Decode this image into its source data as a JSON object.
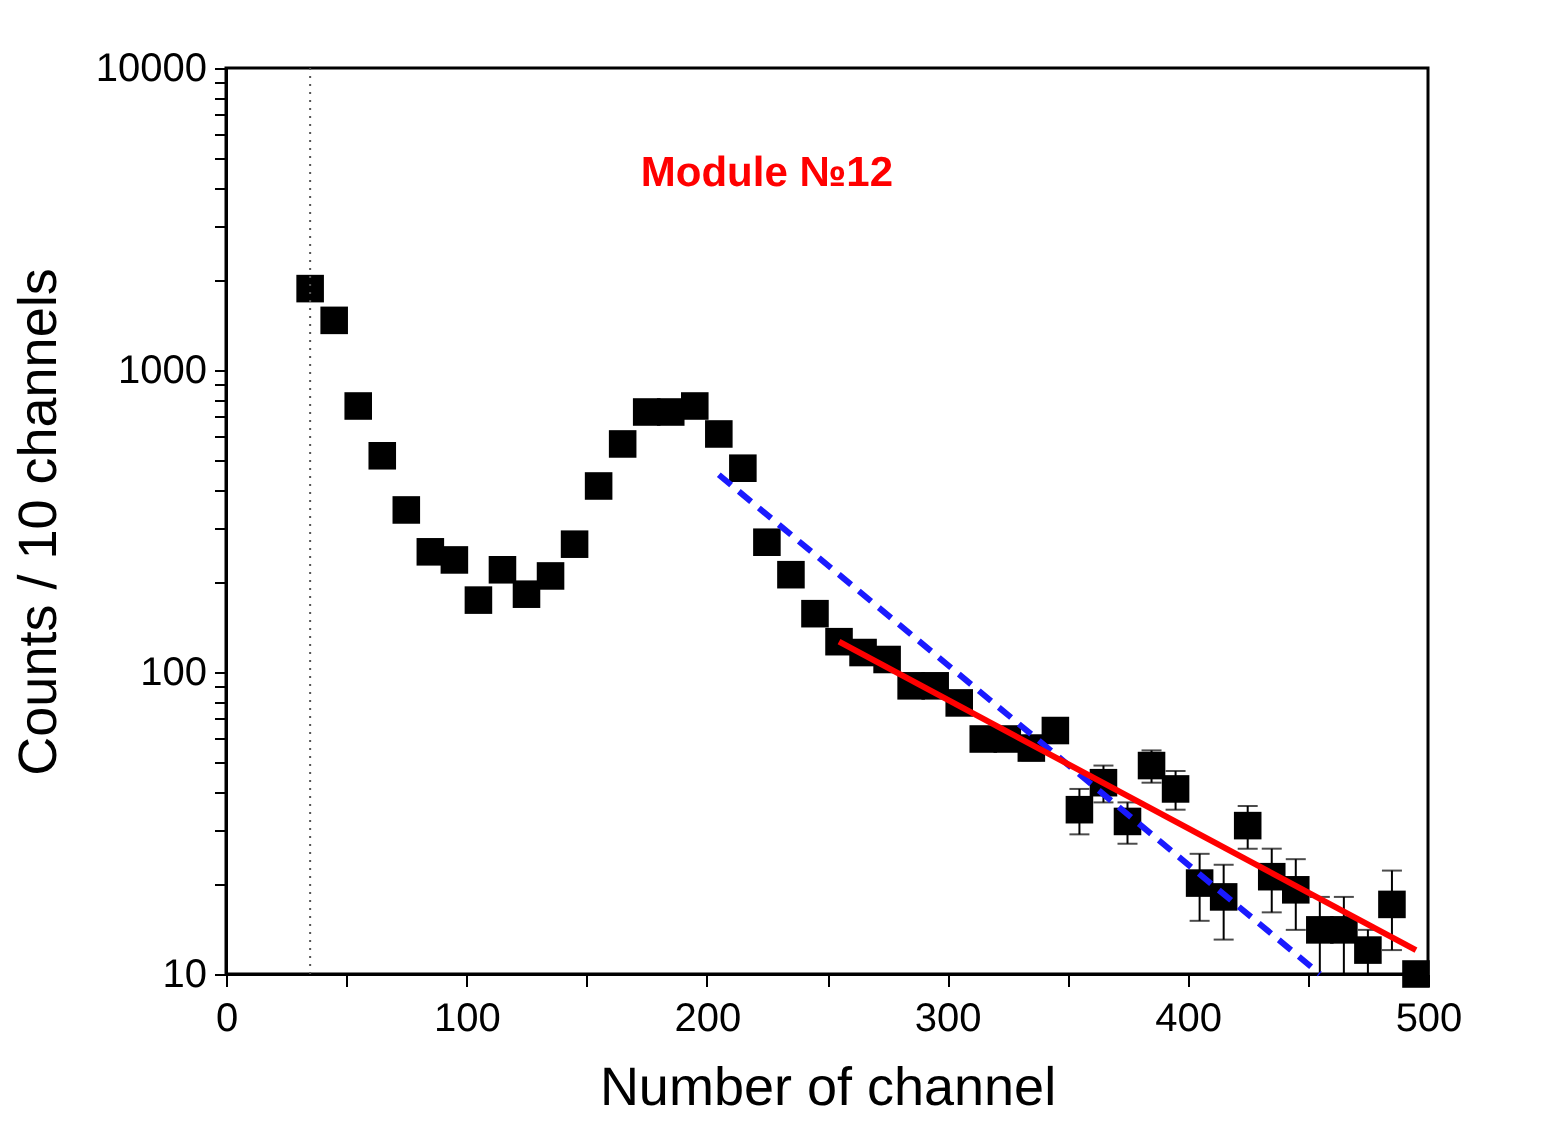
{
  "chart_data": {
    "type": "scatter",
    "xlabel": "Number of channel",
    "ylabel": "Counts / 10 channels",
    "annotations": [
      "Module №12"
    ],
    "xlim": [
      0,
      500
    ],
    "xticks": [
      0,
      {
        "value": 50,
        "label": null
      },
      100,
      {
        "value": 150,
        "label": null
      },
      200,
      {
        "value": 250,
        "label": null
      },
      300,
      {
        "value": 350,
        "label": null
      },
      400,
      {
        "value": 450,
        "label": null
      },
      500
    ],
    "ylim": [
      10,
      10000
    ],
    "yticks": [
      10,
      {
        "value": 20,
        "label": null
      },
      {
        "value": 30,
        "label": null
      },
      {
        "value": 40,
        "label": null
      },
      {
        "value": 50,
        "label": null
      },
      {
        "value": 60,
        "label": null
      },
      {
        "value": 70,
        "label": null
      },
      {
        "value": 80,
        "label": null
      },
      {
        "value": 90,
        "label": null
      },
      100,
      {
        "value": 200,
        "label": null
      },
      {
        "value": 300,
        "label": null
      },
      {
        "value": 400,
        "label": null
      },
      {
        "value": 500,
        "label": null
      },
      {
        "value": 600,
        "label": null
      },
      {
        "value": 700,
        "label": null
      },
      {
        "value": 800,
        "label": null
      },
      {
        "value": 900,
        "label": null
      },
      1000,
      {
        "value": 2000,
        "label": null
      },
      {
        "value": 3000,
        "label": null
      },
      {
        "value": 4000,
        "label": null
      },
      {
        "value": 5000,
        "label": null
      },
      {
        "value": 6000,
        "label": null
      },
      {
        "value": 7000,
        "label": null
      },
      {
        "value": 8000,
        "label": null
      },
      {
        "value": 9000,
        "label": null
      },
      10000
    ],
    "log": "y",
    "grid": false,
    "legend": false,
    "ref_lines": [
      {
        "axis": "x",
        "value": 35,
        "color": "#555555",
        "line_style": "dotted"
      }
    ],
    "series": [
      {
        "marker": "square",
        "color": "#000000",
        "x": [
          35,
          45,
          55,
          65,
          75,
          85,
          95,
          105,
          115,
          125,
          135,
          145,
          155,
          165,
          175,
          185,
          195,
          205,
          215,
          225,
          235,
          245,
          255,
          265,
          275,
          285,
          295,
          305,
          315,
          325,
          335,
          345,
          355,
          365,
          375,
          385,
          395,
          405,
          415,
          425,
          435,
          445,
          455,
          465,
          475,
          485,
          495
        ],
        "values": [
          1860,
          1460,
          760,
          520,
          344,
          250,
          235,
          173,
          218,
          181,
          208,
          265,
          413,
          569,
          726,
          726,
          760,
          614,
          473,
          269,
          210,
          156,
          126,
          116,
          110,
          90,
          90,
          79,
          60,
          60,
          56,
          64,
          35,
          43,
          32,
          49,
          41,
          20,
          18,
          31,
          21,
          19,
          14,
          14,
          12,
          17,
          10
        ],
        "errors": [
          null,
          null,
          null,
          null,
          null,
          null,
          null,
          null,
          null,
          null,
          null,
          null,
          null,
          null,
          null,
          null,
          null,
          null,
          null,
          null,
          null,
          null,
          null,
          null,
          null,
          5,
          5,
          5,
          5,
          5,
          5,
          5,
          6,
          6,
          5,
          6,
          6,
          5,
          5,
          5,
          5,
          5,
          4,
          4,
          2,
          5,
          null
        ]
      },
      {
        "type": "line",
        "line_style": "dashed",
        "color": "#1a1aff",
        "x": [
          205,
          455
        ],
        "values": [
          450,
          10
        ]
      },
      {
        "type": "line",
        "line_style": "solid",
        "color": "#ff0000",
        "x": [
          255,
          495
        ],
        "values": [
          126,
          12
        ]
      }
    ]
  }
}
